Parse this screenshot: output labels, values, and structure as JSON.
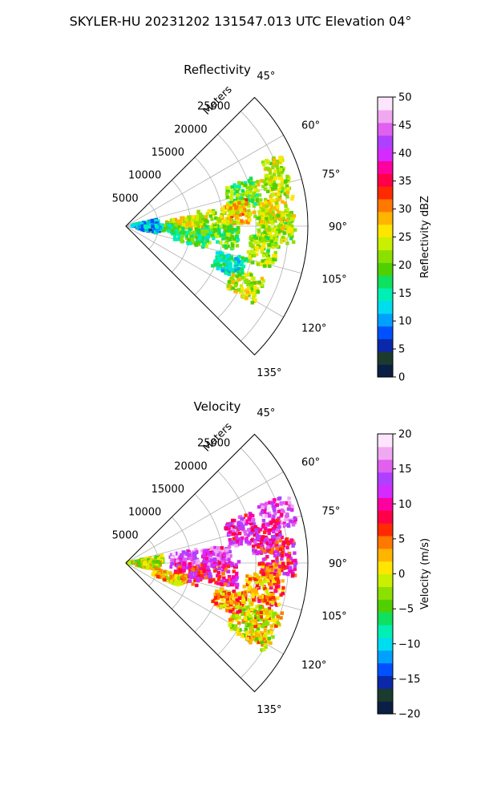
{
  "figure": {
    "suptitle": "SKYLER-HU  20231202  131547.013 UTC Elevation 04°"
  },
  "chart_data": [
    {
      "type": "heatmap",
      "subtype": "radar-ppi-sector",
      "title": "Reflectivity",
      "range_axis_label": "Meters",
      "range_ticks": [
        5000,
        10000,
        15000,
        20000,
        25000
      ],
      "range_tick_labels": [
        "5000",
        "10000",
        "15000",
        "20000",
        "25000"
      ],
      "azimuth_range": [
        45,
        135
      ],
      "azimuth_ticks": [
        45,
        60,
        75,
        90,
        105,
        120,
        135
      ],
      "azimuth_tick_labels": [
        "45°",
        "60°",
        "75°",
        "90°",
        "105°",
        "120°",
        "135°"
      ],
      "grid": true,
      "colorbar": {
        "label": "Reflectivity dBZ",
        "min": 0,
        "max": 50,
        "ticks": [
          0,
          5,
          10,
          15,
          20,
          25,
          30,
          35,
          40,
          45,
          50
        ],
        "tick_labels": [
          "0",
          "5",
          "10",
          "15",
          "20",
          "25",
          "30",
          "35",
          "40",
          "45",
          "50"
        ],
        "colors": [
          "#0b1f45",
          "#1c3b2f",
          "#0a28a8",
          "#0050ff",
          "#00a0ff",
          "#00dcf0",
          "#00f0b4",
          "#10e060",
          "#50d000",
          "#8ce000",
          "#c8f000",
          "#ffe600",
          "#ffb400",
          "#ff7800",
          "#ff2a00",
          "#ff0048",
          "#ff00a0",
          "#d42bff",
          "#b040ff",
          "#e060f0",
          "#f0a8f0",
          "#fde6fd"
        ]
      },
      "echoes": [
        {
          "az": 90,
          "range": 23000,
          "value": 22
        },
        {
          "az": 88,
          "range": 23500,
          "value": 25
        },
        {
          "az": 80,
          "range": 22000,
          "value": 24
        },
        {
          "az": 72,
          "range": 24500,
          "value": 23
        },
        {
          "az": 100,
          "range": 21500,
          "value": 22
        },
        {
          "az": 86,
          "range": 14000,
          "value": 23
        },
        {
          "az": 96,
          "range": 14500,
          "value": 19
        },
        {
          "az": 87,
          "range": 9000,
          "value": 25
        },
        {
          "az": 93,
          "range": 6000,
          "value": 17
        },
        {
          "az": 116,
          "range": 20500,
          "value": 24
        },
        {
          "az": 110,
          "range": 17000,
          "value": 15
        },
        {
          "az": 75,
          "range": 18500,
          "value": 20
        },
        {
          "az": 83,
          "range": 17500,
          "value": 27
        },
        {
          "az": 99,
          "range": 10000,
          "value": 18
        },
        {
          "az": 84,
          "range": 3000,
          "value": 12
        },
        {
          "az": 95,
          "range": 3500,
          "value": 11
        }
      ]
    },
    {
      "type": "heatmap",
      "subtype": "radar-ppi-sector",
      "title": "Velocity",
      "range_axis_label": "Meters",
      "range_ticks": [
        5000,
        10000,
        15000,
        20000,
        25000
      ],
      "range_tick_labels": [
        "5000",
        "10000",
        "15000",
        "20000",
        "25000"
      ],
      "azimuth_range": [
        45,
        135
      ],
      "azimuth_ticks": [
        45,
        60,
        75,
        90,
        105,
        120,
        135
      ],
      "azimuth_tick_labels": [
        "45°",
        "60°",
        "75°",
        "90°",
        "105°",
        "120°",
        "135°"
      ],
      "grid": true,
      "colorbar": {
        "label": "Velocity (m/s)",
        "min": -20,
        "max": 20,
        "ticks": [
          -20,
          -15,
          -10,
          -5,
          0,
          5,
          10,
          15,
          20
        ],
        "tick_labels": [
          "−20",
          "−15",
          "−10",
          "−5",
          "0",
          "5",
          "10",
          "15",
          "20"
        ],
        "colors": [
          "#0b1f45",
          "#1c3b2f",
          "#0a28a8",
          "#0050ff",
          "#00a0ff",
          "#00dcf0",
          "#00f0b4",
          "#10e060",
          "#50d000",
          "#8ce000",
          "#c8f000",
          "#ffe600",
          "#ffb400",
          "#ff7800",
          "#ff2a00",
          "#ff0048",
          "#ff00a0",
          "#d42bff",
          "#b040ff",
          "#e060f0",
          "#f0a8f0",
          "#fde6fd"
        ]
      },
      "echoes": [
        {
          "az": 72,
          "range": 24500,
          "value": 14
        },
        {
          "az": 80,
          "range": 22000,
          "value": 11
        },
        {
          "az": 88,
          "range": 23500,
          "value": 9
        },
        {
          "az": 98,
          "range": 22500,
          "value": 5
        },
        {
          "az": 103,
          "range": 21000,
          "value": 3
        },
        {
          "az": 86,
          "range": 14000,
          "value": 13
        },
        {
          "az": 96,
          "range": 14500,
          "value": 10
        },
        {
          "az": 87,
          "range": 9000,
          "value": 15
        },
        {
          "az": 116,
          "range": 20500,
          "value": 0
        },
        {
          "az": 115,
          "range": 23500,
          "value": 1
        },
        {
          "az": 110,
          "range": 17000,
          "value": 3
        },
        {
          "az": 75,
          "range": 18500,
          "value": 12
        },
        {
          "az": 99,
          "range": 10000,
          "value": 9
        },
        {
          "az": 84,
          "range": 3000,
          "value": -1
        },
        {
          "az": 95,
          "range": 3500,
          "value": 0
        },
        {
          "az": 108,
          "range": 7000,
          "value": 1
        }
      ]
    }
  ]
}
